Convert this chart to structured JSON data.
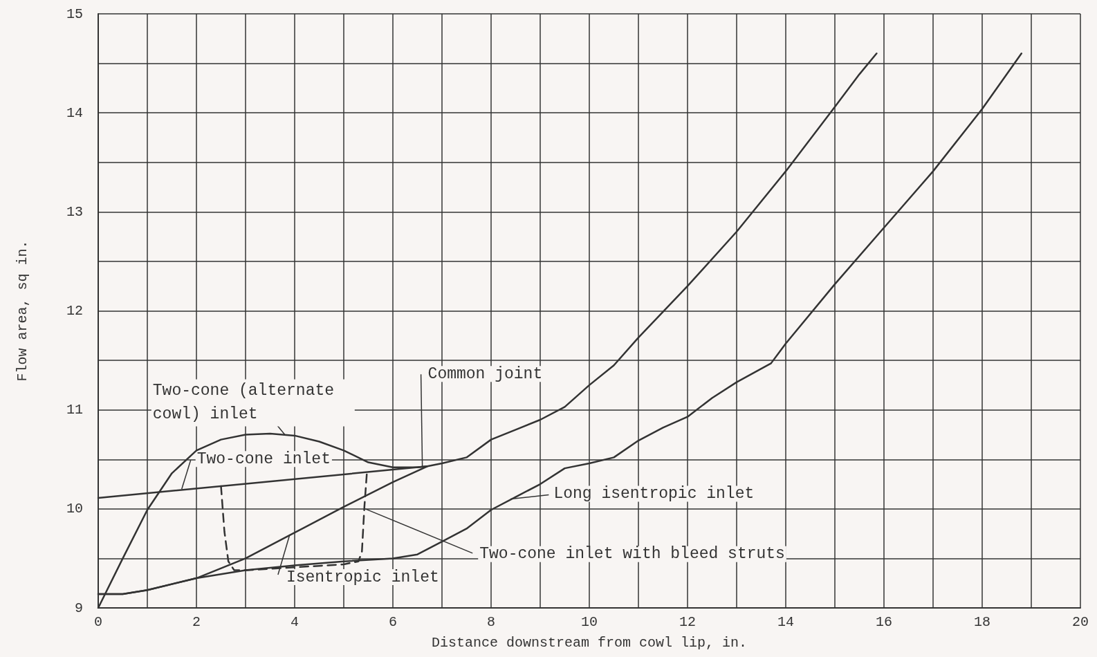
{
  "chart_data": {
    "type": "line",
    "xlabel": "Distance downstream from cowl lip, in.",
    "ylabel": "Flow area, sq in.",
    "xlim": [
      0,
      20
    ],
    "ylim": [
      9,
      15
    ],
    "xticks": [
      0,
      {
        "value": 1,
        "label": null
      },
      2,
      {
        "value": 3,
        "label": null
      },
      4,
      {
        "value": 5,
        "label": null
      },
      6,
      {
        "value": 7,
        "label": null
      },
      8,
      {
        "value": 9,
        "label": null
      },
      10,
      {
        "value": 11,
        "label": null
      },
      12,
      {
        "value": 13,
        "label": null
      },
      14,
      {
        "value": 15,
        "label": null
      },
      16,
      {
        "value": 17,
        "label": null
      },
      18,
      {
        "value": 19,
        "label": null
      },
      20
    ],
    "yticks": [
      9,
      {
        "value": 9.5,
        "label": null
      },
      10,
      {
        "value": 10.5,
        "label": null
      },
      11,
      {
        "value": 11.5,
        "label": null
      },
      12,
      {
        "value": 12.5,
        "label": null
      },
      13,
      {
        "value": 13.5,
        "label": null
      },
      14,
      {
        "value": 14.5,
        "label": null
      },
      15
    ],
    "grid": true,
    "marker": "none",
    "line_style": "solid",
    "series": [
      {
        "color": "#333333",
        "x": [
          0,
          0.5,
          1,
          1.5,
          2,
          2.5,
          3,
          3.5,
          4,
          4.5,
          5,
          5.5,
          6,
          6.5,
          6.7
        ],
        "values": [
          9.0,
          9.5,
          9.99,
          10.36,
          10.59,
          10.7,
          10.75,
          10.76,
          10.74,
          10.68,
          10.59,
          10.47,
          10.42,
          10.42,
          10.43
        ]
      },
      {
        "color": "#333333",
        "x": [
          0,
          6.7
        ],
        "values": [
          10.11,
          10.43
        ]
      },
      {
        "color": "#333333",
        "x": [
          0,
          0.5,
          1,
          1.5,
          2,
          3,
          4,
          5,
          6,
          6.7,
          7,
          7.5,
          8,
          8.5,
          9,
          9.5,
          10,
          10.5,
          11,
          12,
          13,
          14,
          15,
          15.5,
          15.85
        ],
        "values": [
          9.14,
          9.14,
          9.18,
          9.24,
          9.3,
          9.5,
          9.76,
          10.02,
          10.27,
          10.43,
          10.46,
          10.52,
          10.7,
          10.8,
          10.9,
          11.03,
          11.25,
          11.45,
          11.73,
          12.25,
          12.8,
          13.41,
          14.06,
          14.39,
          14.6
        ]
      },
      {
        "color": "#333333",
        "x": [
          0,
          0.5,
          1,
          2,
          3,
          4,
          5,
          6,
          6.5,
          7,
          7.5,
          8,
          8.5,
          9,
          9.5,
          10,
          10.5,
          11,
          11.5,
          12,
          12.5,
          13,
          13.7,
          14,
          15,
          16,
          17,
          18,
          18.8
        ],
        "values": [
          9.14,
          9.14,
          9.18,
          9.3,
          9.38,
          9.43,
          9.47,
          9.5,
          9.54,
          9.67,
          9.8,
          9.99,
          10.12,
          10.25,
          10.41,
          10.46,
          10.52,
          10.69,
          10.82,
          10.93,
          11.12,
          11.28,
          11.47,
          11.67,
          12.27,
          12.84,
          13.41,
          14.04,
          14.6
        ]
      },
      {
        "color": "#333333",
        "line_style": "dashed",
        "x": [
          2.5,
          2.57,
          2.65,
          2.77,
          3,
          4,
          5,
          5.3,
          5.37,
          5.42,
          5.47
        ],
        "values": [
          10.23,
          9.77,
          9.47,
          9.38,
          9.38,
          9.41,
          9.44,
          9.47,
          9.57,
          10.02,
          10.36
        ]
      }
    ],
    "annotations": [
      {
        "text": "Two-cone (alternate cowl) inlet",
        "x": 3.8,
        "y": 10.75
      },
      {
        "text": "Two-cone inlet",
        "x": 1.7,
        "y": 10.2
      },
      {
        "text": "Common joint",
        "x": 6.6,
        "y": 10.43
      },
      {
        "text": "Long isentropic inlet",
        "x": 8.4,
        "y": 10.1
      },
      {
        "text": "Two-cone inlet with bleed struts",
        "x": 5.44,
        "y": 10.0
      },
      {
        "text": "Isentropic inlet",
        "x": 3.9,
        "y": 9.74
      }
    ]
  }
}
